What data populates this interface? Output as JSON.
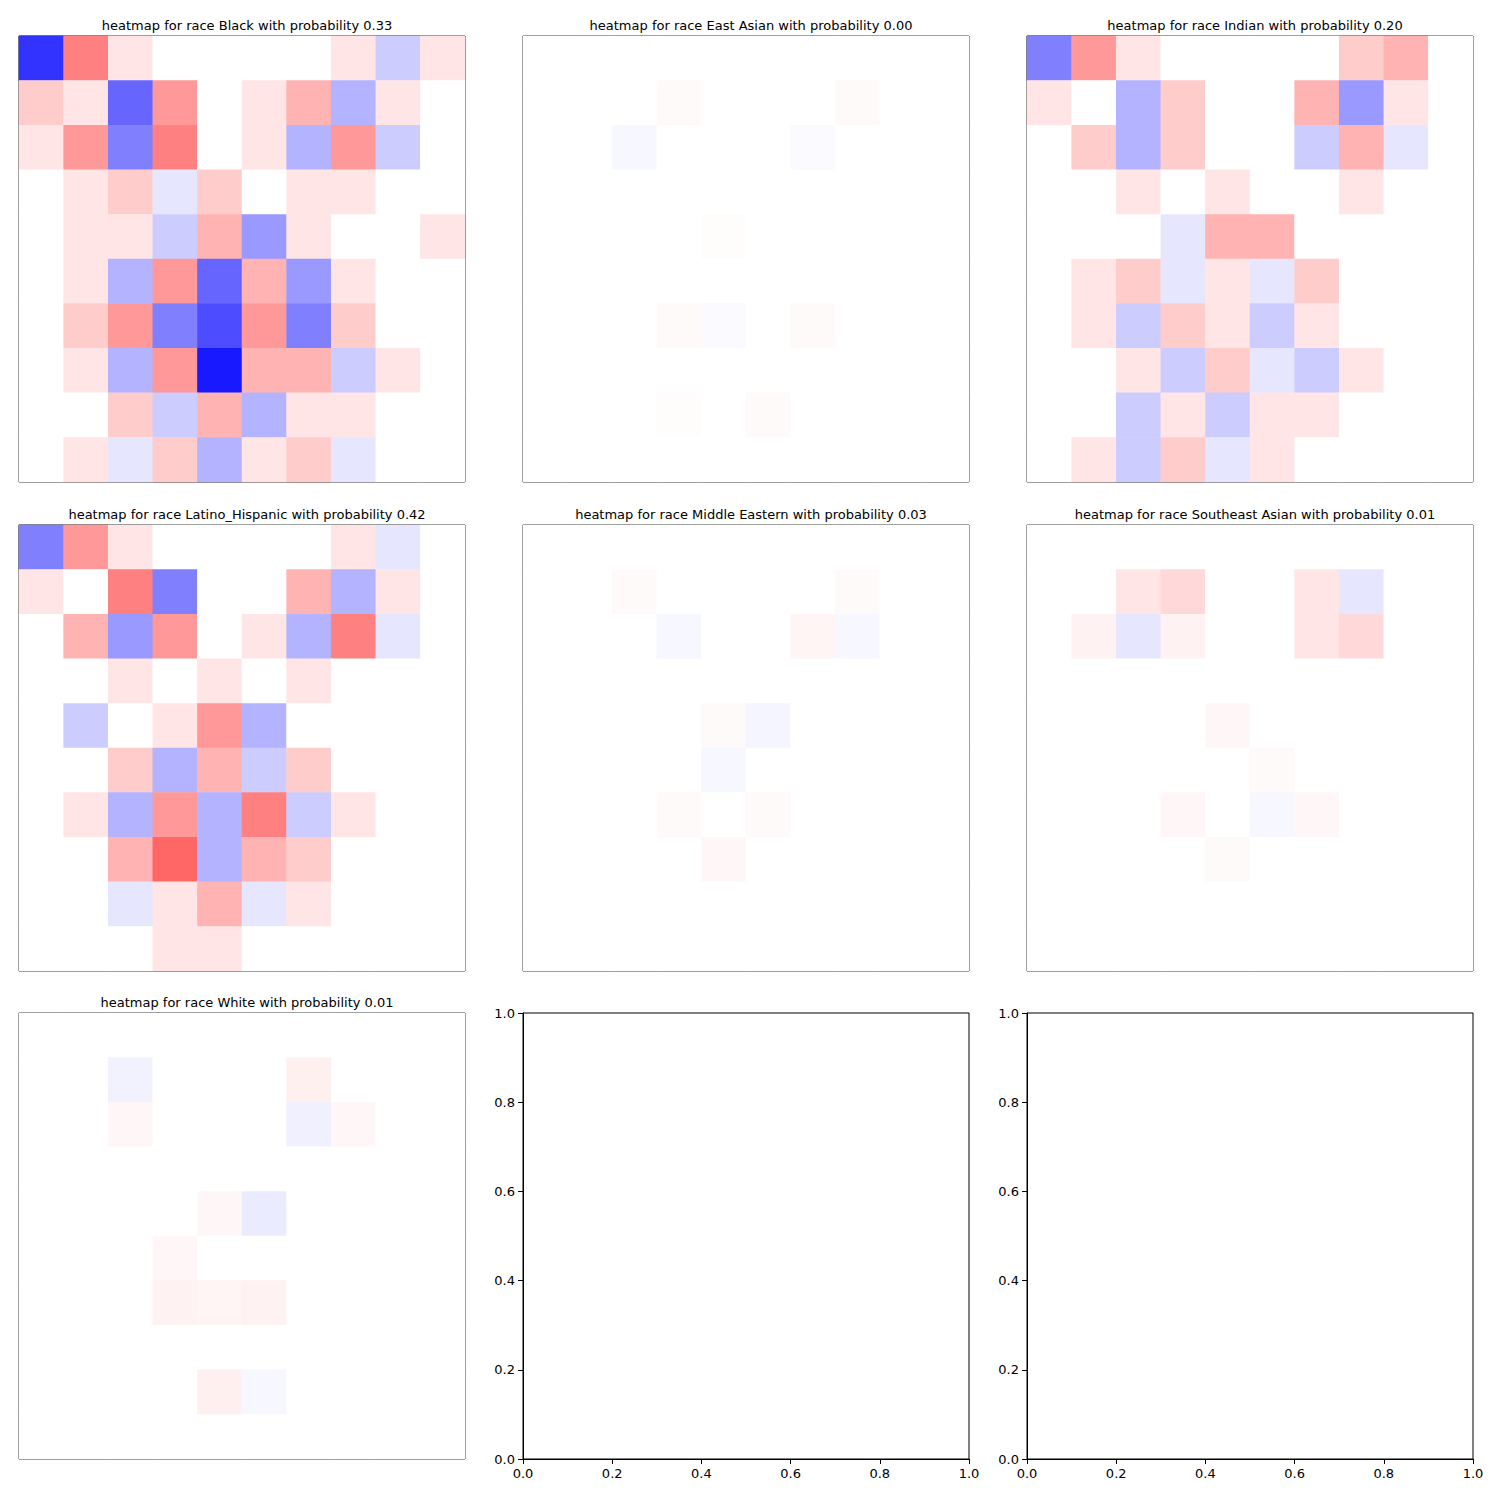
{
  "chart_data": [
    {
      "type": "heatmap",
      "title": "heatmap for race Black with probability 0.33",
      "tick_labels": false,
      "color_range": [
        -1,
        1
      ],
      "cells": [
        [
          -0.8,
          0.5,
          0.1,
          0,
          0,
          0,
          0,
          0.1,
          -0.2,
          0.1
        ],
        [
          0.2,
          0.1,
          -0.6,
          0.4,
          0,
          0.1,
          0.3,
          -0.3,
          0.1,
          0
        ],
        [
          0.1,
          0.4,
          -0.5,
          0.5,
          0,
          0.1,
          -0.3,
          0.4,
          -0.2,
          0
        ],
        [
          0,
          0.1,
          0.2,
          -0.1,
          0.2,
          0,
          0.1,
          0.1,
          0,
          0
        ],
        [
          0,
          0.1,
          0.1,
          -0.2,
          0.3,
          -0.4,
          0.1,
          0,
          0,
          0.1
        ],
        [
          0,
          0.1,
          -0.3,
          0.4,
          -0.6,
          0.3,
          -0.4,
          0.1,
          0,
          0
        ],
        [
          0,
          0.2,
          0.4,
          -0.5,
          -0.7,
          0.4,
          -0.5,
          0.2,
          0,
          0
        ],
        [
          0,
          0.1,
          -0.3,
          0.4,
          -0.9,
          0.3,
          0.3,
          -0.2,
          0.1,
          0
        ],
        [
          0,
          0,
          0.2,
          -0.2,
          0.3,
          -0.3,
          0.1,
          0.1,
          0,
          0
        ],
        [
          0,
          0.1,
          -0.1,
          0.2,
          -0.3,
          0.1,
          0.2,
          -0.1,
          0,
          0
        ]
      ]
    },
    {
      "type": "heatmap",
      "title": "heatmap for race East Asian with probability 0.00",
      "tick_labels": false,
      "color_range": [
        -1,
        1
      ],
      "cells": [
        [
          0,
          0,
          0,
          0,
          0,
          0,
          0,
          0,
          0,
          0
        ],
        [
          0,
          0,
          0,
          0.02,
          0,
          0,
          0,
          0.02,
          0,
          0
        ],
        [
          0,
          0,
          -0.03,
          0,
          0,
          0,
          -0.02,
          0,
          0,
          0
        ],
        [
          0,
          0,
          0,
          0,
          0,
          0,
          0,
          0,
          0,
          0
        ],
        [
          0,
          0,
          0,
          0,
          0.01,
          0,
          0,
          0,
          0,
          0
        ],
        [
          0,
          0,
          0,
          0,
          0,
          0,
          0,
          0,
          0,
          0
        ],
        [
          0,
          0,
          0,
          0.02,
          -0.02,
          0,
          0.02,
          0,
          0,
          0
        ],
        [
          0,
          0,
          0,
          0,
          0,
          0,
          0,
          0,
          0,
          0
        ],
        [
          0,
          0,
          0,
          0.01,
          0,
          0.02,
          0,
          0,
          0,
          0
        ],
        [
          0,
          0,
          0,
          0,
          0,
          0,
          0,
          0,
          0,
          0
        ]
      ]
    },
    {
      "type": "heatmap",
      "title": "heatmap for race Indian with probability 0.20",
      "tick_labels": false,
      "color_range": [
        -1,
        1
      ],
      "cells": [
        [
          -0.5,
          0.4,
          0.1,
          0,
          0,
          0,
          0,
          0.2,
          0.3,
          0
        ],
        [
          0.1,
          0,
          -0.3,
          0.2,
          0,
          0,
          0.3,
          -0.4,
          0.1,
          0
        ],
        [
          0,
          0.2,
          -0.3,
          0.2,
          0,
          0,
          -0.2,
          0.3,
          -0.1,
          0
        ],
        [
          0,
          0,
          0.1,
          0,
          0.1,
          0,
          0,
          0.1,
          0,
          0
        ],
        [
          0,
          0,
          0,
          -0.1,
          0.3,
          0.3,
          0,
          0,
          0,
          0
        ],
        [
          0,
          0.1,
          0.2,
          -0.1,
          0.1,
          -0.1,
          0.2,
          0,
          0,
          0
        ],
        [
          0,
          0.1,
          -0.2,
          0.2,
          0.1,
          -0.2,
          0.1,
          0,
          0,
          0
        ],
        [
          0,
          0,
          0.1,
          -0.2,
          0.2,
          -0.1,
          -0.2,
          0.1,
          0,
          0
        ],
        [
          0,
          0,
          -0.2,
          0.1,
          -0.2,
          0.1,
          0.1,
          0,
          0,
          0
        ],
        [
          0,
          0.1,
          -0.2,
          0.2,
          -0.1,
          0.1,
          0,
          0,
          0,
          0
        ]
      ]
    },
    {
      "type": "heatmap",
      "title": "heatmap for race Latino_Hispanic with probability 0.42",
      "tick_labels": false,
      "color_range": [
        -1,
        1
      ],
      "cells": [
        [
          -0.5,
          0.4,
          0.1,
          0,
          0,
          0,
          0,
          0.1,
          -0.1,
          0
        ],
        [
          0.1,
          0,
          0.5,
          -0.5,
          0,
          0,
          0.3,
          -0.3,
          0.1,
          0
        ],
        [
          0,
          0.3,
          -0.4,
          0.4,
          0,
          0.1,
          -0.3,
          0.5,
          -0.1,
          0
        ],
        [
          0,
          0,
          0.1,
          0,
          0.1,
          0,
          0.1,
          0,
          0,
          0
        ],
        [
          0,
          -0.2,
          0,
          0.1,
          0.4,
          -0.3,
          0,
          0,
          0,
          0
        ],
        [
          0,
          0,
          0.2,
          -0.3,
          0.3,
          -0.2,
          0.2,
          0,
          0,
          0
        ],
        [
          0,
          0.1,
          -0.3,
          0.4,
          -0.3,
          0.5,
          -0.2,
          0.1,
          0,
          0
        ],
        [
          0,
          0,
          0.3,
          0.6,
          -0.3,
          0.3,
          0.2,
          0,
          0,
          0
        ],
        [
          0,
          0,
          -0.1,
          0.1,
          0.3,
          -0.1,
          0.1,
          0,
          0,
          0
        ],
        [
          0,
          0,
          0,
          0.1,
          0.1,
          0,
          0,
          0,
          0,
          0
        ]
      ]
    },
    {
      "type": "heatmap",
      "title": "heatmap for race Middle Eastern with probability 0.03",
      "tick_labels": false,
      "color_range": [
        -1,
        1
      ],
      "cells": [
        [
          0,
          0,
          0,
          0,
          0,
          0,
          0,
          0,
          0,
          0
        ],
        [
          0,
          0,
          0.02,
          0,
          0,
          0,
          0,
          0.02,
          0,
          0
        ],
        [
          0,
          0,
          0,
          -0.03,
          0,
          0,
          0.04,
          -0.03,
          0,
          0
        ],
        [
          0,
          0,
          0,
          0,
          0,
          0,
          0,
          0,
          0,
          0
        ],
        [
          0,
          0,
          0,
          0,
          0.02,
          -0.04,
          0,
          0,
          0,
          0
        ],
        [
          0,
          0,
          0,
          0,
          -0.03,
          0,
          0,
          0,
          0,
          0
        ],
        [
          0,
          0,
          0,
          0.02,
          0,
          0.02,
          0,
          0,
          0,
          0
        ],
        [
          0,
          0,
          0,
          0,
          0.03,
          0,
          0,
          0,
          0,
          0
        ],
        [
          0,
          0,
          0,
          0,
          0,
          0,
          0,
          0,
          0,
          0
        ],
        [
          0,
          0,
          0,
          0,
          0,
          0,
          0,
          0,
          0,
          0
        ]
      ]
    },
    {
      "type": "heatmap",
      "title": "heatmap for race Southeast Asian with probability 0.01",
      "tick_labels": false,
      "color_range": [
        -1,
        1
      ],
      "cells": [
        [
          0,
          0,
          0,
          0,
          0,
          0,
          0,
          0,
          0,
          0
        ],
        [
          0,
          0,
          0.1,
          0.15,
          0,
          0,
          0.1,
          -0.1,
          0,
          0
        ],
        [
          0,
          0.05,
          -0.1,
          0.05,
          0,
          0,
          0.1,
          0.15,
          0,
          0
        ],
        [
          0,
          0,
          0,
          0,
          0,
          0,
          0,
          0,
          0,
          0
        ],
        [
          0,
          0,
          0,
          0,
          0.03,
          0,
          0,
          0,
          0,
          0
        ],
        [
          0,
          0,
          0,
          0,
          0,
          0.02,
          0,
          0,
          0,
          0
        ],
        [
          0,
          0,
          0,
          0.03,
          0,
          -0.03,
          0.03,
          0,
          0,
          0
        ],
        [
          0,
          0,
          0,
          0,
          0.02,
          0,
          0,
          0,
          0,
          0
        ],
        [
          0,
          0,
          0,
          0,
          0,
          0,
          0,
          0,
          0,
          0
        ],
        [
          0,
          0,
          0,
          0,
          0,
          0,
          0,
          0,
          0,
          0
        ]
      ]
    },
    {
      "type": "heatmap",
      "title": "heatmap for race White with probability 0.01",
      "tick_labels": false,
      "color_range": [
        -1,
        1
      ],
      "cells": [
        [
          0,
          0,
          0,
          0,
          0,
          0,
          0,
          0,
          0,
          0
        ],
        [
          0,
          0,
          -0.05,
          0,
          0,
          0,
          0.06,
          0,
          0,
          0
        ],
        [
          0,
          0,
          0.03,
          0,
          0,
          0,
          -0.06,
          0.03,
          0,
          0
        ],
        [
          0,
          0,
          0,
          0,
          0,
          0,
          0,
          0,
          0,
          0
        ],
        [
          0,
          0,
          0,
          0,
          0.03,
          -0.08,
          0,
          0,
          0,
          0
        ],
        [
          0,
          0,
          0,
          0.03,
          0,
          0,
          0,
          0,
          0,
          0
        ],
        [
          0,
          0,
          0,
          0.05,
          0.04,
          0.05,
          0,
          0,
          0,
          0
        ],
        [
          0,
          0,
          0,
          0,
          0,
          0,
          0,
          0,
          0,
          0
        ],
        [
          0,
          0,
          0,
          0,
          0.06,
          -0.03,
          0,
          0,
          0,
          0
        ],
        [
          0,
          0,
          0,
          0,
          0,
          0,
          0,
          0,
          0,
          0
        ]
      ]
    },
    {
      "type": "empty",
      "xlim": [
        0,
        1
      ],
      "ylim": [
        0,
        1
      ],
      "xticks": [
        {
          "value": 0,
          "label": "0.0"
        },
        {
          "value": 0.2,
          "label": "0.2"
        },
        {
          "value": 0.4,
          "label": "0.4"
        },
        {
          "value": 0.6,
          "label": "0.6"
        },
        {
          "value": 0.8,
          "label": "0.8"
        },
        {
          "value": 1,
          "label": "1.0"
        }
      ],
      "yticks": [
        {
          "value": 0,
          "label": "0.0"
        },
        {
          "value": 0.2,
          "label": "0.2"
        },
        {
          "value": 0.4,
          "label": "0.4"
        },
        {
          "value": 0.6,
          "label": "0.6"
        },
        {
          "value": 0.8,
          "label": "0.8"
        },
        {
          "value": 1,
          "label": "1.0"
        }
      ]
    },
    {
      "type": "empty",
      "xlim": [
        0,
        1
      ],
      "ylim": [
        0,
        1
      ],
      "xticks": [
        {
          "value": 0,
          "label": "0.0"
        },
        {
          "value": 0.2,
          "label": "0.2"
        },
        {
          "value": 0.4,
          "label": "0.4"
        },
        {
          "value": 0.6,
          "label": "0.6"
        },
        {
          "value": 0.8,
          "label": "0.8"
        },
        {
          "value": 1,
          "label": "1.0"
        }
      ],
      "yticks": [
        {
          "value": 0,
          "label": "0.0"
        },
        {
          "value": 0.2,
          "label": "0.2"
        },
        {
          "value": 0.4,
          "label": "0.4"
        },
        {
          "value": 0.6,
          "label": "0.6"
        },
        {
          "value": 0.8,
          "label": "0.8"
        },
        {
          "value": 1,
          "label": "1.0"
        }
      ]
    }
  ]
}
